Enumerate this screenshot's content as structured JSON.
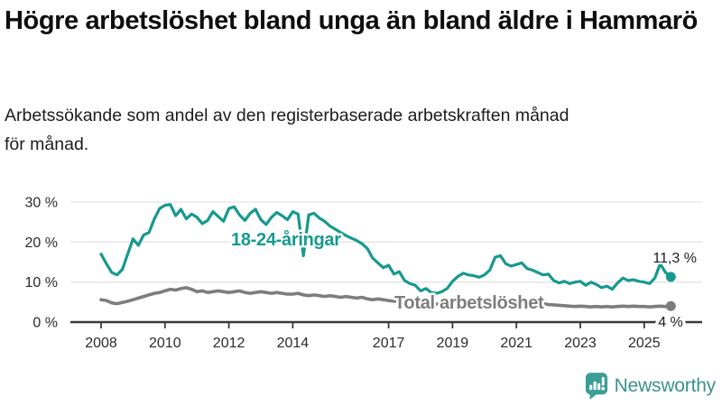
{
  "header": {
    "title": "Högre arbetslöshet bland unga än bland äldre i Hammarö",
    "subtitle": "Arbetssökande som andel av den registerbaserade arbetskraften månad för månad."
  },
  "chart_data": {
    "type": "line",
    "title": "Högre arbetslöshet bland unga än bland äldre i Hammarö",
    "xlabel": "",
    "ylabel": "Arbetssökande som andel av den registerbaserade arbetskraften (%)",
    "x_start": 2008,
    "x_step_years": 0.1666667,
    "x_ticks": [
      2008,
      2010,
      2012,
      2014,
      2017,
      2019,
      2021,
      2023,
      2025
    ],
    "y_ticks": [
      0,
      10,
      20,
      30
    ],
    "y_tick_suffix": " %",
    "ylim": [
      0,
      31
    ],
    "grid": true,
    "legend_position": "inline-labels",
    "series": [
      {
        "name": "18-24-åringar",
        "color": "#17998f",
        "end_label": "11,3 %",
        "end_value": 11.3,
        "values": [
          17.0,
          14.6,
          12.4,
          11.8,
          13.2,
          17.0,
          20.8,
          19.2,
          21.8,
          22.4,
          25.8,
          28.4,
          29.2,
          29.4,
          26.6,
          28.2,
          25.8,
          27.0,
          26.2,
          24.6,
          25.4,
          27.6,
          26.4,
          25.2,
          28.4,
          28.8,
          26.8,
          25.4,
          27.2,
          28.2,
          25.6,
          24.4,
          26.2,
          27.4,
          26.6,
          25.6,
          27.6,
          27.0,
          16.6,
          26.8,
          27.2,
          26.0,
          25.2,
          24.0,
          23.2,
          22.4,
          21.6,
          21.0,
          20.4,
          19.6,
          18.4,
          16.0,
          14.8,
          13.6,
          14.2,
          12.0,
          12.6,
          10.4,
          9.6,
          9.2,
          7.8,
          8.4,
          7.4,
          7.2,
          7.6,
          8.4,
          10.2,
          11.4,
          12.2,
          11.8,
          11.6,
          11.2,
          11.8,
          13.0,
          16.2,
          16.6,
          14.6,
          14.0,
          14.4,
          14.8,
          13.4,
          13.0,
          12.4,
          11.8,
          12.0,
          10.4,
          9.8,
          10.2,
          9.6,
          10.0,
          10.2,
          9.2,
          10.0,
          9.4,
          8.6,
          9.0,
          8.2,
          9.8,
          11.0,
          10.4,
          10.6,
          10.2,
          10.0,
          9.6,
          11.0,
          14.6,
          12.4,
          11.3
        ]
      },
      {
        "name": "Total arbetslöshet",
        "color": "#7d7d7d",
        "end_label": "4 %",
        "end_value": 4.0,
        "values": [
          5.6,
          5.4,
          4.8,
          4.6,
          4.9,
          5.2,
          5.6,
          6.0,
          6.4,
          6.8,
          7.2,
          7.4,
          7.8,
          8.2,
          8.0,
          8.4,
          8.6,
          8.2,
          7.6,
          7.8,
          7.4,
          7.6,
          7.8,
          7.6,
          7.4,
          7.6,
          7.8,
          7.4,
          7.2,
          7.4,
          7.6,
          7.4,
          7.2,
          7.4,
          7.2,
          7.0,
          7.0,
          7.2,
          6.8,
          6.6,
          6.8,
          6.6,
          6.4,
          6.6,
          6.4,
          6.2,
          6.4,
          6.2,
          6.0,
          6.2,
          5.8,
          5.6,
          5.8,
          5.6,
          5.4,
          5.2,
          5.4,
          5.0,
          4.9,
          5.0,
          4.8,
          4.6,
          4.7,
          4.5,
          4.4,
          4.6,
          4.4,
          4.5,
          4.3,
          4.4,
          4.5,
          4.4,
          4.6,
          5.0,
          5.6,
          5.8,
          5.6,
          5.4,
          5.5,
          5.4,
          5.2,
          5.0,
          4.8,
          4.6,
          4.4,
          4.3,
          4.2,
          4.1,
          4.0,
          3.9,
          4.0,
          3.9,
          3.8,
          3.9,
          3.8,
          3.9,
          3.8,
          3.9,
          4.0,
          3.9,
          4.0,
          3.9,
          3.9,
          3.8,
          3.9,
          4.0,
          3.9,
          4.0
        ]
      }
    ]
  },
  "colors": {
    "accent_teal": "#17998f",
    "line_gray": "#7d7d7d",
    "grid": "#e3e3e3",
    "axis": "#3a3a3a",
    "tick_text": "#2b2b2b",
    "value_text": "#1c1c1c"
  },
  "brand": {
    "name": "Newsworthy",
    "icon": "newsworthy-speech-bubble-bar-chart-icon",
    "icon_color": "#3a9e97",
    "text_color": "#3b938c"
  }
}
